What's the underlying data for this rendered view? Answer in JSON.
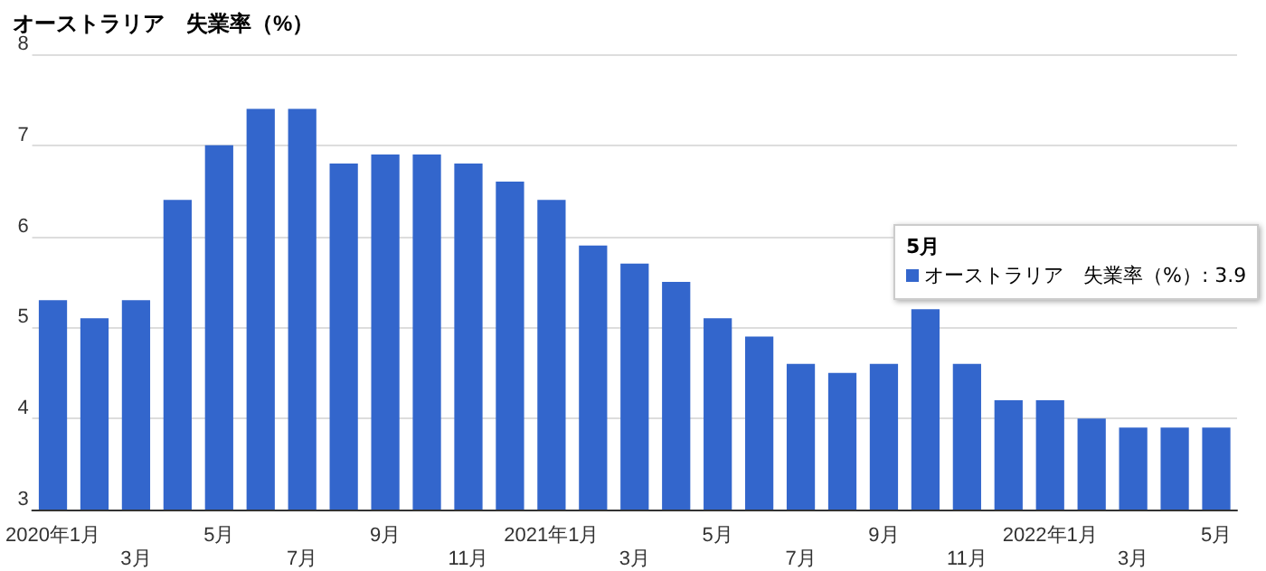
{
  "chart_data": {
    "type": "bar",
    "title": "オーストラリア　失業率（%）",
    "categories": [
      "2020年1月",
      null,
      "3月",
      null,
      "5月",
      null,
      "7月",
      null,
      "9月",
      null,
      "11月",
      null,
      "2021年1月",
      null,
      "3月",
      null,
      "5月",
      null,
      "7月",
      null,
      "9月",
      null,
      "11月",
      null,
      "2022年1月",
      null,
      "3月",
      null,
      "5月"
    ],
    "series": [
      {
        "color": "#3366cc",
        "values": [
          5.3,
          5.1,
          5.3,
          6.4,
          7.0,
          7.4,
          7.4,
          6.8,
          6.9,
          6.9,
          6.8,
          6.6,
          6.4,
          5.9,
          5.7,
          5.5,
          5.1,
          4.9,
          4.6,
          4.5,
          4.6,
          5.2,
          4.6,
          4.2,
          4.2,
          4.0,
          3.9,
          3.9,
          3.9
        ]
      }
    ],
    "ylim": [
      3,
      8
    ],
    "yticks": [
      3,
      4,
      5,
      6,
      7,
      8
    ],
    "grid": "y",
    "annotations": [
      "5月",
      "オーストラリア　失業率（%）: 3.9"
    ]
  }
}
